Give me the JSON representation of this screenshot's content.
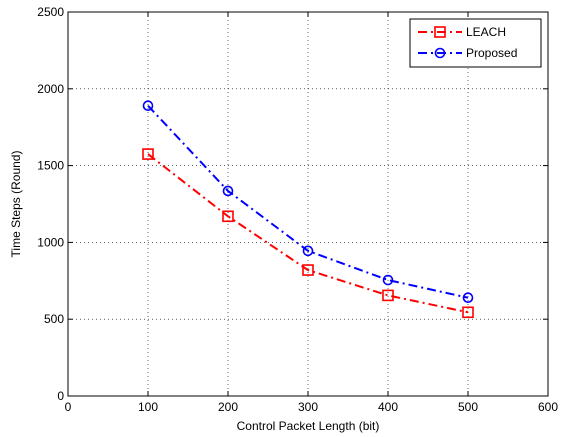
{
  "chart_data": {
    "type": "line",
    "xlabel": "Control Packet Length (bit)",
    "ylabel": "Time Steps (Round)",
    "xlim": [
      0,
      600
    ],
    "ylim": [
      0,
      2500
    ],
    "xticks": [
      0,
      100,
      200,
      300,
      400,
      500,
      600
    ],
    "yticks": [
      0,
      500,
      1000,
      1500,
      2000,
      2500
    ],
    "grid": true,
    "legend_position": "top-right",
    "x": [
      100,
      200,
      300,
      400,
      500
    ],
    "series": [
      {
        "name": "LEACH",
        "values": [
          1575,
          1170,
          820,
          655,
          545
        ],
        "color": "#ff0000",
        "marker": "square",
        "line_style": "dash-dot"
      },
      {
        "name": "Proposed",
        "values": [
          1890,
          1335,
          945,
          755,
          640
        ],
        "color": "#0000ff",
        "marker": "circle",
        "line_style": "dash-dot"
      }
    ]
  }
}
